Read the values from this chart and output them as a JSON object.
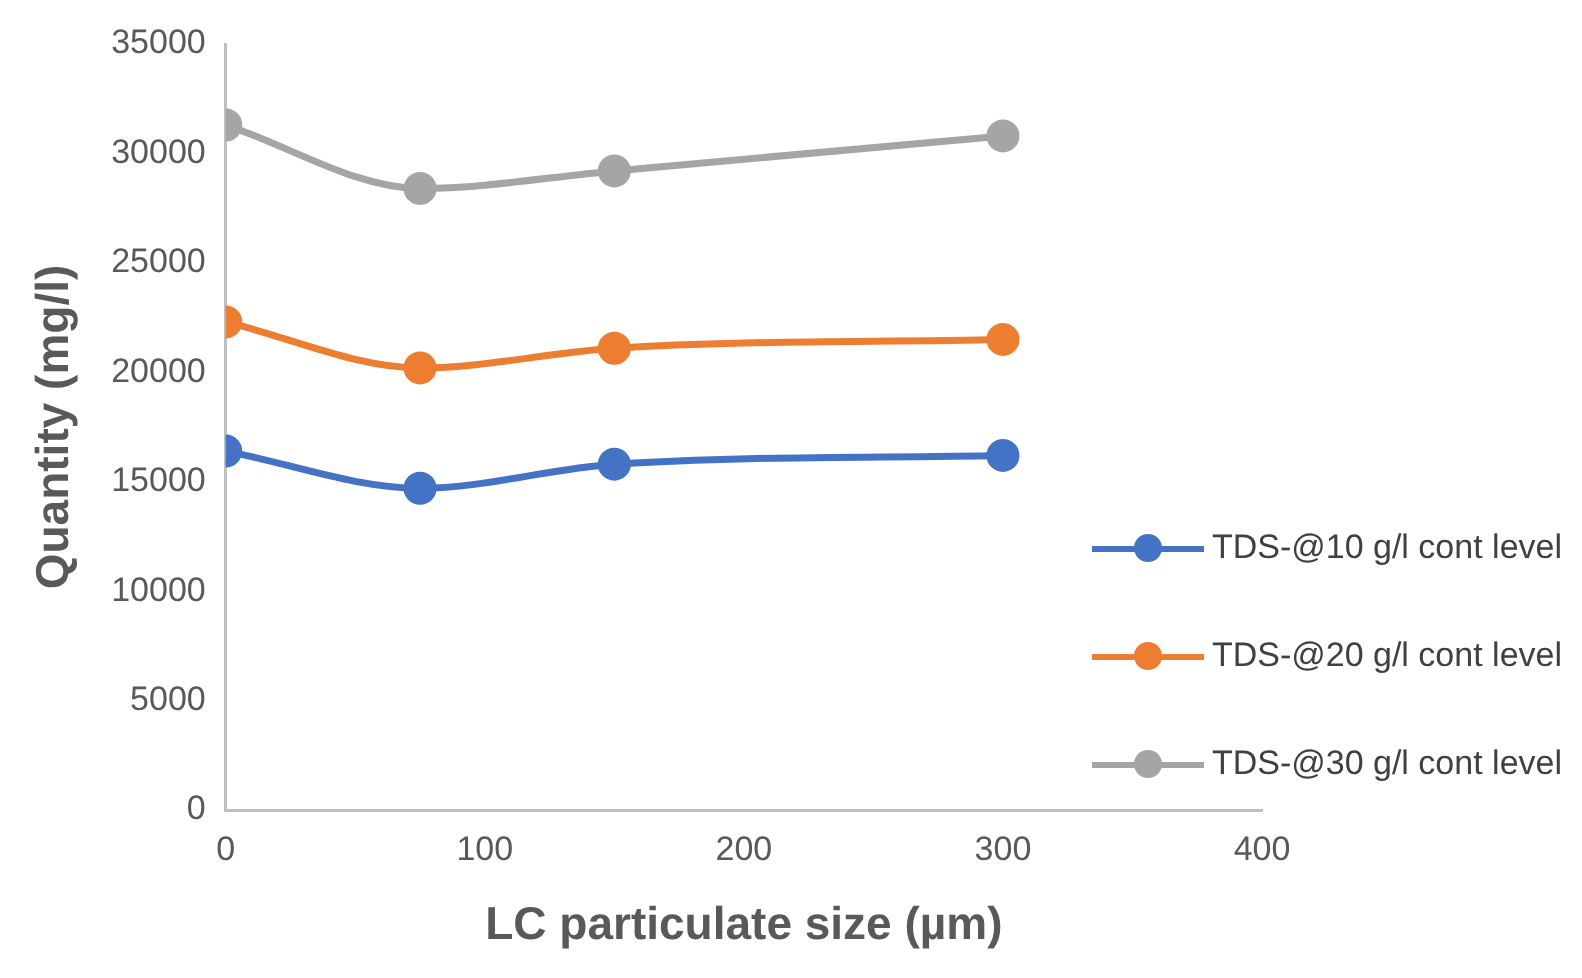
{
  "chart_data": {
    "type": "line",
    "xlabel": "LC particulate size (µm)",
    "ylabel": "Quantity (mg/l)",
    "x": [
      0,
      75,
      150,
      300
    ],
    "series": [
      {
        "name": "TDS-@10 g/l cont level",
        "color": "#4472c4",
        "values": [
          16400,
          14700,
          15800,
          16200
        ]
      },
      {
        "name": "TDS-@20 g/l cont level",
        "color": "#ed7d31",
        "values": [
          22300,
          20200,
          21100,
          21500
        ]
      },
      {
        "name": "TDS-@30 g/l cont level",
        "color": "#a5a5a5",
        "values": [
          31300,
          28400,
          29200,
          30800
        ]
      }
    ],
    "xlim": [
      0,
      400
    ],
    "xticks": [
      0,
      100,
      200,
      300,
      400
    ],
    "ylim": [
      0,
      35000
    ],
    "yticks": [
      0,
      5000,
      10000,
      15000,
      20000,
      25000,
      30000,
      35000
    ],
    "grid": false,
    "legend": "bottom right",
    "marker": "circle",
    "line_style": "solid"
  }
}
